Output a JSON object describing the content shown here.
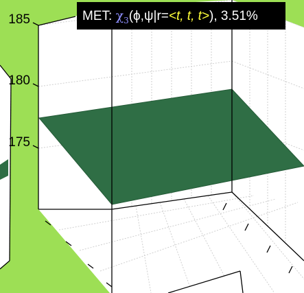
{
  "chart_data": {
    "type": "surface",
    "title": {
      "prefix": "MET: ",
      "symbol": "χ",
      "symbol_subscript": "3",
      "args_open": "(ϕ,ψ|r=",
      "r_value": "<t, t, t>",
      "args_close": "), 3.51%"
    },
    "z_ticks": [
      "185",
      "180",
      "175"
    ],
    "zlim": [
      170,
      185
    ],
    "surface_z": 178,
    "grid": true,
    "colors": {
      "background": "#9ddf55",
      "surface": "#2f6e45",
      "surface_edge": "#245a37",
      "axes_bg": "#ffffff",
      "grid": "#cfcfcf",
      "axis_line": "#000000",
      "title_bg": "#000000",
      "title_text": "#ffffff",
      "title_symbol": "#8f8fff",
      "title_highlight": "#ffff3a"
    }
  }
}
